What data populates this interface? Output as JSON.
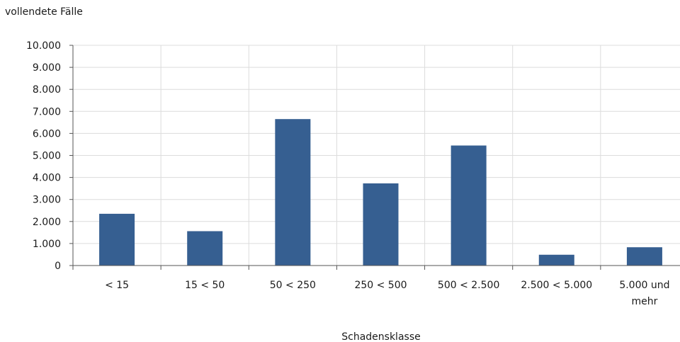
{
  "chart_data": {
    "type": "bar",
    "ylabel": "vollendete Fälle",
    "xlabel": "Schadensklasse",
    "categories": [
      [
        "< 15"
      ],
      [
        "15 < 50"
      ],
      [
        "50 < 250"
      ],
      [
        "250 < 500"
      ],
      [
        "500 < 2.500"
      ],
      [
        "2.500 < 5.000"
      ],
      [
        "5.000 und",
        "mehr"
      ]
    ],
    "values": [
      2350,
      1560,
      6650,
      3730,
      5450,
      490,
      830
    ],
    "ylim": [
      0,
      10000
    ],
    "yticks": [
      "0",
      "1.000",
      "2.000",
      "3.000",
      "4.000",
      "5.000",
      "6.000",
      "7.000",
      "8.000",
      "9.000",
      "10.000"
    ],
    "grid": true,
    "bar_color": "#365f91",
    "grid_color": "#dcdcdc",
    "axis_color": "#555555"
  }
}
